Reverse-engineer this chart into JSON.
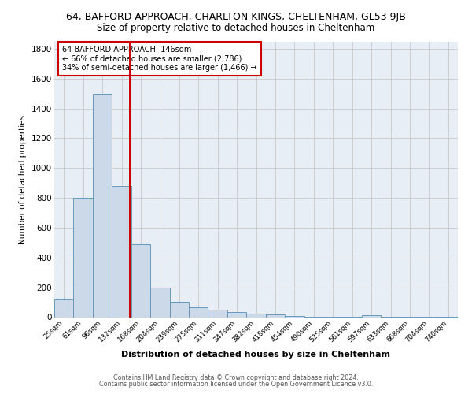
{
  "title_line1": "64, BAFFORD APPROACH, CHARLTON KINGS, CHELTENHAM, GL53 9JB",
  "title_line2": "Size of property relative to detached houses in Cheltenham",
  "xlabel": "Distribution of detached houses by size in Cheltenham",
  "ylabel": "Number of detached properties",
  "footer_line1": "Contains HM Land Registry data © Crown copyright and database right 2024.",
  "footer_line2": "Contains public sector information licensed under the Open Government Licence v3.0.",
  "categories": [
    "25sqm",
    "61sqm",
    "96sqm",
    "132sqm",
    "168sqm",
    "204sqm",
    "239sqm",
    "275sqm",
    "311sqm",
    "347sqm",
    "382sqm",
    "418sqm",
    "454sqm",
    "490sqm",
    "525sqm",
    "561sqm",
    "597sqm",
    "633sqm",
    "668sqm",
    "704sqm",
    "740sqm"
  ],
  "values": [
    120,
    800,
    1500,
    880,
    490,
    200,
    105,
    65,
    48,
    33,
    26,
    20,
    8,
    5,
    4,
    3,
    14,
    2,
    1,
    1,
    1
  ],
  "bar_color": "#ccd9e8",
  "bar_edge_color": "#6899bb",
  "background_color": "#e8eef5",
  "grid_color": "#c8c8c8",
  "vline_color": "#cc0000",
  "vline_pos": 3.42,
  "annotation_text": "64 BAFFORD APPROACH: 146sqm\n← 66% of detached houses are smaller (2,786)\n34% of semi-detached houses are larger (1,466) →",
  "annotation_box_facecolor": "#ffffff",
  "annotation_box_edgecolor": "#cc0000",
  "ylim": [
    0,
    1850
  ],
  "yticks": [
    0,
    200,
    400,
    600,
    800,
    1000,
    1200,
    1400,
    1600,
    1800
  ],
  "title1_fontsize": 9,
  "title2_fontsize": 8.5,
  "ylabel_fontsize": 7.5,
  "xlabel_fontsize": 8,
  "xtick_fontsize": 6.2,
  "ytick_fontsize": 7.5,
  "annot_fontsize": 7,
  "footer_fontsize": 5.8
}
